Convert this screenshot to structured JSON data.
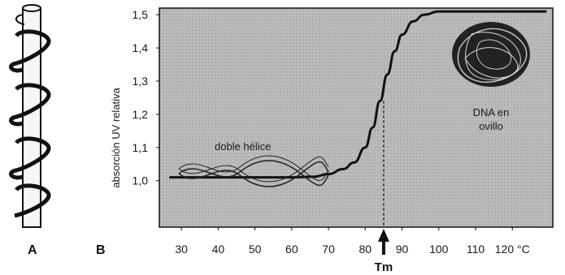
{
  "panels": {
    "a_label": "A",
    "b_label": "B"
  },
  "chart_data": {
    "type": "line",
    "title": "",
    "xlabel": "",
    "ylabel": "absorción UV relativa",
    "x_ticks": [
      30,
      40,
      50,
      60,
      70,
      80,
      90,
      100,
      110,
      120
    ],
    "x_tick_labels": [
      "30",
      "40",
      "50",
      "60",
      "70",
      "80",
      "90",
      "100",
      "110",
      "120 °C"
    ],
    "y_ticks": [
      1.0,
      1.1,
      1.2,
      1.3,
      1.4,
      1.5
    ],
    "y_tick_labels": [
      "1,0",
      "1,1",
      "1,2",
      "1,3",
      "1,4",
      "1,5"
    ],
    "xlim": [
      24,
      131
    ],
    "ylim": [
      0.86,
      1.52
    ],
    "grid": false,
    "series": [
      {
        "x": [
          27,
          40,
          50,
          60,
          66,
          70,
          74,
          77,
          80,
          82,
          84,
          86,
          88,
          90,
          93,
          96,
          100,
          110,
          120,
          129
        ],
        "values": [
          1.01,
          1.01,
          1.01,
          1.01,
          1.012,
          1.02,
          1.035,
          1.055,
          1.1,
          1.16,
          1.24,
          1.32,
          1.39,
          1.44,
          1.48,
          1.5,
          1.51,
          1.51,
          1.51,
          1.51
        ]
      }
    ],
    "marker": {
      "label": "Tm",
      "x": 85
    },
    "annotations": {
      "left": "doble hélice",
      "right_line1": "DNA en",
      "right_line2": "ovillo"
    }
  },
  "colors": {
    "plot_background": "#b7b7b7",
    "curve": "#111111",
    "helix_strand": "#1f1f1f",
    "coil_dark": "#1b1b1b"
  }
}
